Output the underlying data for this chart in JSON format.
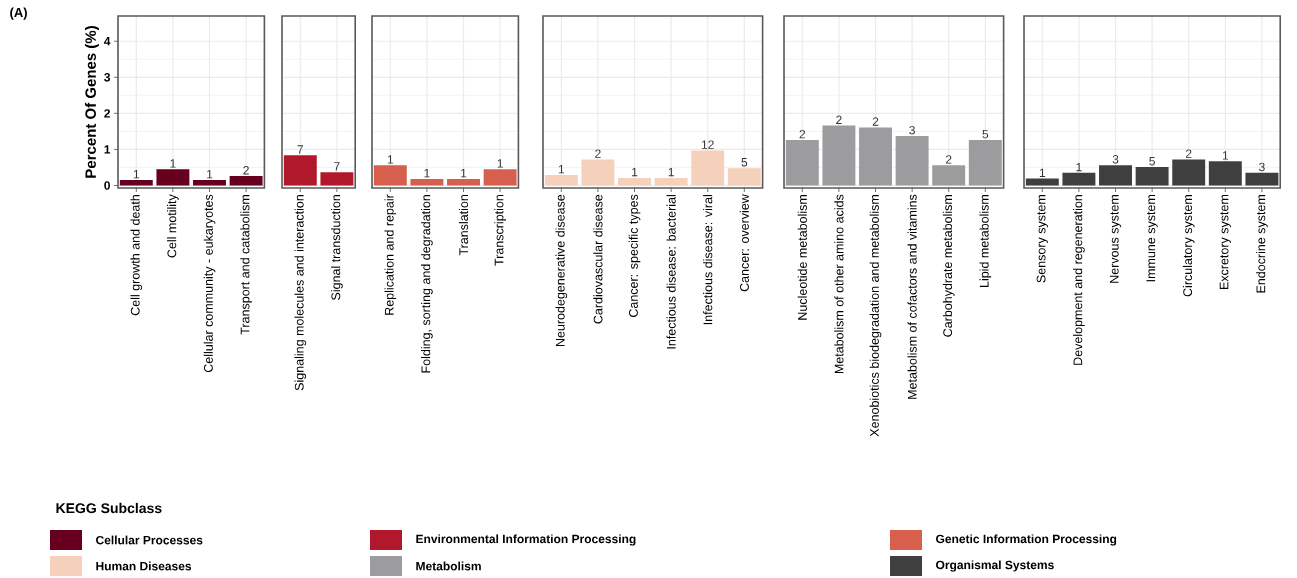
{
  "chart_data": [
    {
      "type": "bar",
      "ylabel": "Percent Of Genes (%)",
      "legend_title": "KEGG Subclass",
      "legend": "bottom",
      "grid": true,
      "ylim": [
        -0.07,
        4.7
      ],
      "yticks": [
        0,
        1,
        2,
        3,
        4
      ],
      "categories": [
        "Cell growth and death",
        "Cell motility",
        "Cellular community - eukaryotes",
        "Transport and catabolism"
      ],
      "series": [
        {
          "name": "Cellular Processes",
          "color": "#67001f",
          "values": [
            0.15,
            0.45,
            0.15,
            0.26
          ]
        }
      ],
      "annotations": [
        "(A)",
        {
          "text": "1",
          "x": "Cell growth and death",
          "y": 0.15
        },
        {
          "text": "1",
          "x": "Cell motility",
          "y": 0.45
        },
        {
          "text": "1",
          "x": "Cellular community - eukaryotes",
          "y": 0.15
        },
        {
          "text": "2",
          "x": "Transport and catabolism",
          "y": 0.26
        }
      ]
    },
    {
      "type": "bar",
      "legend": "bottom",
      "grid": true,
      "tick_labels": "x",
      "ylim": [
        -0.07,
        4.7
      ],
      "yticks": [
        0,
        1,
        2,
        3,
        4
      ],
      "categories": [
        "Signaling molecules and interaction",
        "Signal transduction"
      ],
      "series": [
        {
          "name": "Environmental Information Processing",
          "color": "#b2182b",
          "values": [
            0.84,
            0.37
          ]
        }
      ],
      "annotations": [
        {
          "text": "7",
          "x": "Signaling molecules and interaction",
          "y": 0.84
        },
        {
          "text": "7",
          "x": "Signal transduction",
          "y": 0.37
        }
      ]
    },
    {
      "type": "bar",
      "legend": "bottom",
      "grid": true,
      "tick_labels": "x",
      "ylim": [
        -0.07,
        4.7
      ],
      "yticks": [
        0,
        1,
        2,
        3,
        4
      ],
      "categories": [
        "Replication and repair",
        "Folding, sorting and degradation",
        "Translation",
        "Transcription"
      ],
      "series": [
        {
          "name": "Genetic Information Processing",
          "color": "#d6604d",
          "values": [
            0.56,
            0.18,
            0.18,
            0.45
          ]
        }
      ],
      "annotations": [
        {
          "text": "1",
          "x": "Replication and repair",
          "y": 0.56
        },
        {
          "text": "1",
          "x": "Folding, sorting and degradation",
          "y": 0.18
        },
        {
          "text": "1",
          "x": "Translation",
          "y": 0.18
        },
        {
          "text": "1",
          "x": "Transcription",
          "y": 0.45
        }
      ]
    },
    {
      "type": "bar",
      "legend": "bottom",
      "grid": true,
      "tick_labels": "x",
      "ylim": [
        -0.07,
        4.7
      ],
      "yticks": [
        0,
        1,
        2,
        3,
        4
      ],
      "categories": [
        "Neurodegenerative disease",
        "Cardiovascular disease",
        "Cancer: specific types",
        "Infectious disease: bacterial",
        "Infectious disease: viral",
        "Cancer: overview"
      ],
      "series": [
        {
          "name": "Human Diseases",
          "color": "#f5d0bb",
          "values": [
            0.29,
            0.72,
            0.21,
            0.21,
            0.97,
            0.48
          ]
        }
      ],
      "annotations": [
        {
          "text": "1",
          "x": "Neurodegenerative disease",
          "y": 0.29
        },
        {
          "text": "2",
          "x": "Cardiovascular disease",
          "y": 0.72
        },
        {
          "text": "1",
          "x": "Cancer: specific types",
          "y": 0.21
        },
        {
          "text": "1",
          "x": "Infectious disease: bacterial",
          "y": 0.21
        },
        {
          "text": "12",
          "x": "Infectious disease: viral",
          "y": 0.97
        },
        {
          "text": "5",
          "x": "Cancer: overview",
          "y": 0.48
        }
      ]
    },
    {
      "type": "bar",
      "legend": "bottom",
      "grid": true,
      "tick_labels": "x",
      "ylim": [
        -0.07,
        4.7
      ],
      "yticks": [
        0,
        1,
        2,
        3,
        4
      ],
      "categories": [
        "Nucleotide metabolism",
        "Metabolism of other amino acids",
        "Xenobiotics biodegradation and metabolism",
        "Metabolism of cofactors and vitamins",
        "Carbohydrate metabolism",
        "Lipid metabolism"
      ],
      "series": [
        {
          "name": "Metabolism",
          "color": "#9c9c9f",
          "values": [
            1.26,
            1.66,
            1.61,
            1.37,
            0.56,
            1.26
          ]
        }
      ],
      "annotations": [
        {
          "text": "2",
          "x": "Nucleotide metabolism",
          "y": 1.26
        },
        {
          "text": "2",
          "x": "Metabolism of other amino acids",
          "y": 1.66
        },
        {
          "text": "2",
          "x": "Xenobiotics biodegradation and metabolism",
          "y": 1.61
        },
        {
          "text": "3",
          "x": "Metabolism of cofactors and vitamins",
          "y": 1.37
        },
        {
          "text": "2",
          "x": "Carbohydrate metabolism",
          "y": 0.56
        },
        {
          "text": "5",
          "x": "Lipid metabolism",
          "y": 1.26
        }
      ]
    },
    {
      "type": "bar",
      "legend": "bottom",
      "grid": true,
      "tick_labels": "x",
      "ylim": [
        -0.07,
        4.7
      ],
      "yticks": [
        0,
        1,
        2,
        3,
        4
      ],
      "categories": [
        "Sensory system",
        "Development and regeneration",
        "Nervous system",
        "Immune system",
        "Circulatory system",
        "Excretory system",
        "Endocrine system"
      ],
      "series": [
        {
          "name": "Organismal Systems",
          "color": "#3f3f3f",
          "values": [
            0.19,
            0.35,
            0.56,
            0.51,
            0.72,
            0.67,
            0.35
          ]
        }
      ],
      "annotations": [
        {
          "text": "1",
          "x": "Sensory system",
          "y": 0.19
        },
        {
          "text": "1",
          "x": "Development and regeneration",
          "y": 0.35
        },
        {
          "text": "3",
          "x": "Nervous system",
          "y": 0.56
        },
        {
          "text": "5",
          "x": "Immune system",
          "y": 0.51
        },
        {
          "text": "2",
          "x": "Circulatory system",
          "y": 0.72
        },
        {
          "text": "1",
          "x": "Excretory system",
          "y": 0.67
        },
        {
          "text": "3",
          "x": "Endocrine system",
          "y": 0.35
        }
      ]
    }
  ]
}
